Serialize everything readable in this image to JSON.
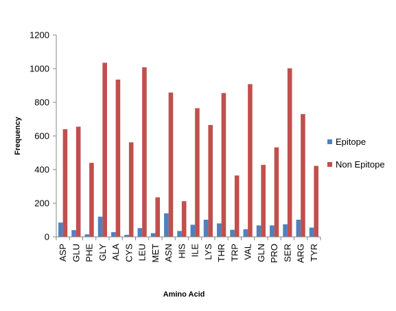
{
  "chart_data": {
    "type": "bar",
    "categories": [
      "ASP",
      "GLU",
      "PHE",
      "GLY",
      "ALA",
      "CYS",
      "LEU",
      "MET",
      "ASN",
      "HIS",
      "ILE",
      "LYS",
      "THR",
      "TRP",
      "VAL",
      "GLN",
      "PRO",
      "SER",
      "ARG",
      "TYR"
    ],
    "series": [
      {
        "name": "Epitope",
        "color": "#4f81bd",
        "values": [
          85,
          40,
          15,
          120,
          28,
          12,
          52,
          22,
          140,
          35,
          72,
          102,
          80,
          42,
          45,
          68,
          68,
          75,
          102,
          55
        ]
      },
      {
        "name": "Non Epitope",
        "color": "#c0504d",
        "values": [
          640,
          655,
          440,
          1035,
          935,
          562,
          1008,
          235,
          858,
          212,
          765,
          665,
          855,
          365,
          908,
          428,
          532,
          1002,
          730,
          422
        ]
      }
    ],
    "title": "",
    "xlabel": "Amino Acid",
    "ylabel": "Frequency",
    "ylim": [
      0,
      1200
    ],
    "yticks": [
      "0",
      "200",
      "400",
      "600",
      "800",
      "1000",
      "1200"
    ],
    "grid": false,
    "legend_position": "right"
  }
}
